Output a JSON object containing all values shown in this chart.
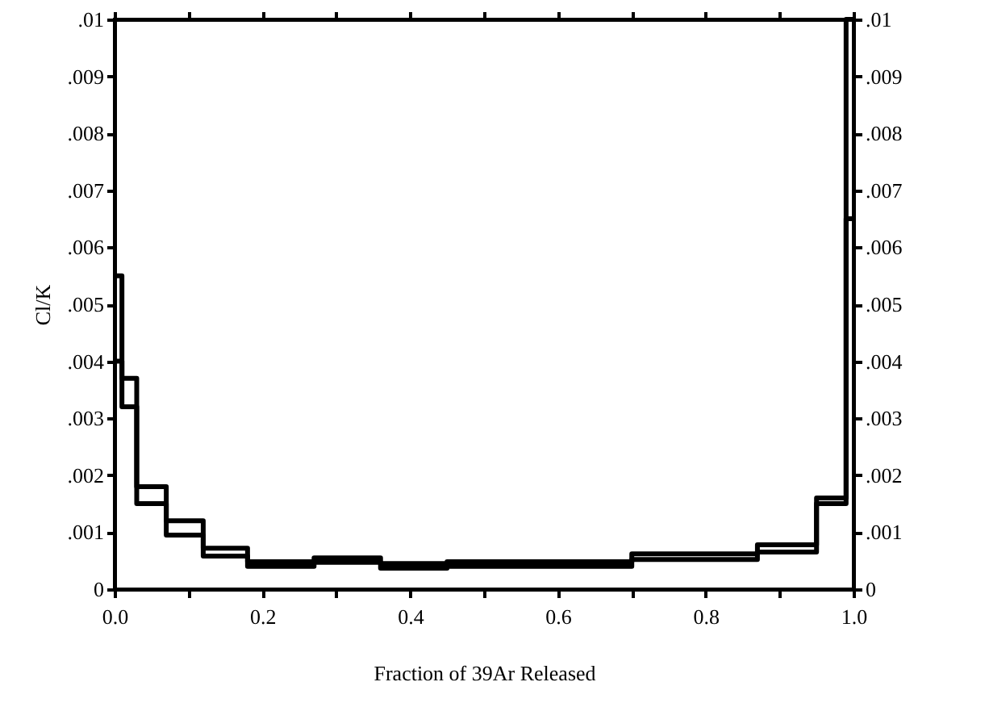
{
  "chart_data": {
    "type": "step",
    "xlabel": "Fraction of 39Ar Released",
    "ylabel": "Cl/K",
    "x": [
      0,
      0.01,
      0.03,
      0.07,
      0.12,
      0.18,
      0.27,
      0.36,
      0.45,
      0.7,
      0.87,
      0.95,
      0.99,
      1.0
    ],
    "series": [
      {
        "color": "#000000",
        "values": [
          0.0055,
          0.0037,
          0.0018,
          0.0012,
          0.00072,
          0.00048,
          0.00055,
          0.00045,
          0.00048,
          0.00062,
          0.00078,
          0.0016,
          0.01,
          0.01
        ]
      },
      {
        "color": "#000000",
        "values": [
          0.004,
          0.0032,
          0.0015,
          0.00095,
          0.00058,
          0.0004,
          0.00047,
          0.00037,
          0.0004,
          0.00052,
          0.00065,
          0.0015,
          0.0065,
          0.0065
        ]
      }
    ],
    "xlim": [
      0,
      1.0
    ],
    "xticks": [
      {
        "value": 0,
        "label": "0.0"
      },
      {
        "value": 0.1,
        "label": null
      },
      {
        "value": 0.2,
        "label": "0.2"
      },
      {
        "value": 0.3,
        "label": null
      },
      {
        "value": 0.4,
        "label": "0.4"
      },
      {
        "value": 0.5,
        "label": null
      },
      {
        "value": 0.6,
        "label": "0.6"
      },
      {
        "value": 0.7,
        "label": null
      },
      {
        "value": 0.8,
        "label": "0.8"
      },
      {
        "value": 0.9,
        "label": null
      },
      {
        "value": 1.0,
        "label": "1.0"
      }
    ],
    "ylim": [
      0,
      0.01
    ],
    "yticks": [
      0,
      {
        "value": 0.001,
        "label": ".001"
      },
      {
        "value": 0.002,
        "label": ".002"
      },
      {
        "value": 0.003,
        "label": ".003"
      },
      {
        "value": 0.004,
        "label": ".004"
      },
      {
        "value": 0.005,
        "label": ".005"
      },
      {
        "value": 0.006,
        "label": ".006"
      },
      {
        "value": 0.007,
        "label": ".007"
      },
      {
        "value": 0.008,
        "label": ".008"
      },
      {
        "value": 0.009,
        "label": ".009"
      },
      {
        "value": 0.01,
        "label": ".01"
      }
    ],
    "y2lim": [
      0,
      0.01
    ],
    "y2ticks": [
      0,
      {
        "value": 0.001,
        "label": ".001"
      },
      {
        "value": 0.002,
        "label": ".002"
      },
      {
        "value": 0.003,
        "label": ".003"
      },
      {
        "value": 0.004,
        "label": ".004"
      },
      {
        "value": 0.005,
        "label": ".005"
      },
      {
        "value": 0.006,
        "label": ".006"
      },
      {
        "value": 0.007,
        "label": ".007"
      },
      {
        "value": 0.008,
        "label": ".008"
      },
      {
        "value": 0.009,
        "label": ".009"
      },
      {
        "value": 0.01,
        "label": ".01"
      }
    ],
    "grid": false,
    "marker": "none",
    "line_style": "solid"
  }
}
